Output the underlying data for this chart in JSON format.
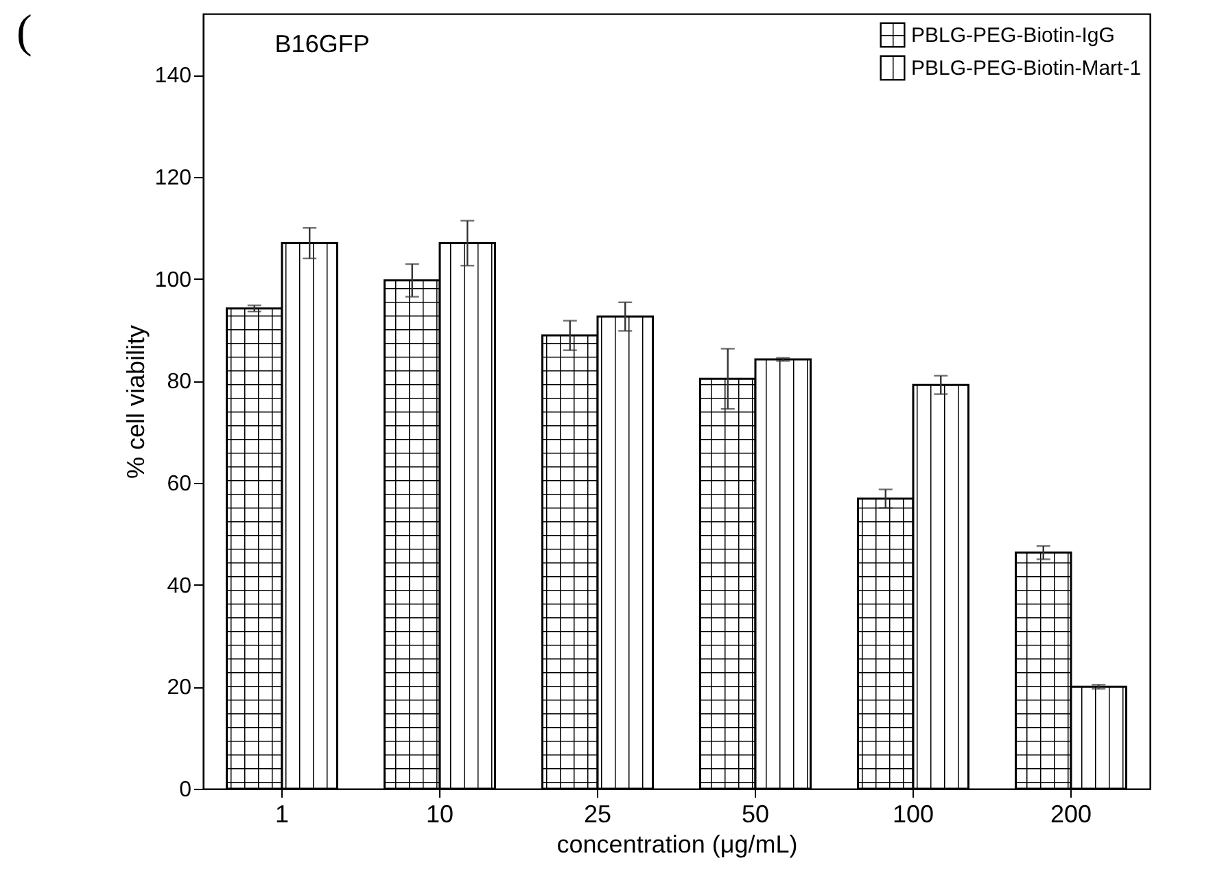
{
  "chart_data": {
    "type": "bar",
    "title": "B16GFP",
    "xlabel": "concentration (μg/mL)",
    "ylabel": "% cell viability",
    "categories": [
      "1",
      "10",
      "25",
      "50",
      "100",
      "200"
    ],
    "series": [
      {
        "name": "PBLG-PEG-Biotin-IgG",
        "color": "#000000",
        "values": [
          94.2,
          99.7,
          88.9,
          80.4,
          56.9,
          46.3
        ],
        "errors": [
          0.6,
          3.2,
          2.9,
          5.9,
          1.8,
          1.3
        ]
      },
      {
        "name": "PBLG-PEG-Biotin-Mart-1",
        "color": "#000000",
        "values": [
          107.0,
          107.0,
          92.6,
          84.2,
          79.2,
          20.0
        ],
        "errors": [
          3.0,
          4.4,
          2.8,
          0.3,
          1.8,
          0.4
        ]
      }
    ],
    "ylim": [
      0,
      152
    ],
    "yticks": [
      0,
      20,
      40,
      60,
      80,
      100,
      120,
      140
    ],
    "legend": "top right",
    "grid": false,
    "annotations": [
      "("
    ]
  }
}
